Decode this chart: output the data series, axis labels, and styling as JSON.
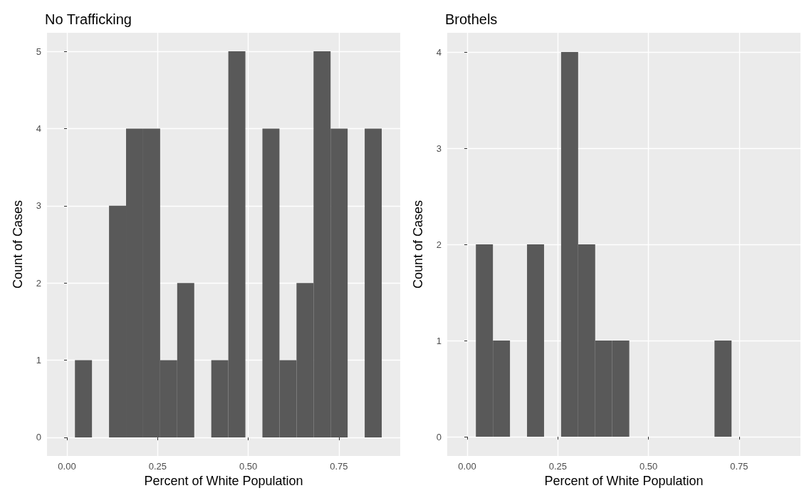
{
  "chart_data": [
    {
      "type": "histogram",
      "title": "No Trafficking",
      "xlabel": "Percent of White Population",
      "ylabel": "Count of Cases",
      "color": "#595959",
      "bins": [
        0.022,
        0.069,
        0.116,
        0.163,
        0.21,
        0.257,
        0.304,
        0.351,
        0.398,
        0.445,
        0.492,
        0.539,
        0.586,
        0.633,
        0.68,
        0.727,
        0.774,
        0.821,
        0.868
      ],
      "values": [
        1,
        0,
        3,
        4,
        4,
        1,
        2,
        0,
        1,
        5,
        0,
        4,
        1,
        2,
        5,
        4,
        0,
        4
      ],
      "xlim": [
        -0.055,
        0.919
      ],
      "xticks": [
        {
          "value": 0,
          "label": "0.00"
        },
        {
          "value": 0.25,
          "label": "0.25"
        },
        {
          "value": 0.5,
          "label": "0.50"
        },
        {
          "value": 0.75,
          "label": "0.75"
        }
      ],
      "ylim": [
        -0.24,
        5.24
      ],
      "yticks": [
        0,
        1,
        2,
        3,
        4,
        5
      ],
      "grid": true
    },
    {
      "type": "histogram",
      "title": "Brothels",
      "xlabel": "Percent of White Population",
      "ylabel": "Count of Cases",
      "color": "#595959",
      "bins": [
        0.024,
        0.071,
        0.118,
        0.165,
        0.212,
        0.259,
        0.306,
        0.353,
        0.4,
        0.447,
        0.494,
        0.541,
        0.588,
        0.635,
        0.682,
        0.729
      ],
      "values": [
        2,
        1,
        0,
        2,
        0,
        4,
        2,
        1,
        1,
        0,
        0,
        0,
        0,
        0,
        1
      ],
      "xlim": [
        -0.055,
        0.919
      ],
      "xticks": [
        {
          "value": 0,
          "label": "0.00"
        },
        {
          "value": 0.25,
          "label": "0.25"
        },
        {
          "value": 0.5,
          "label": "0.50"
        },
        {
          "value": 0.75,
          "label": "0.75"
        }
      ],
      "ylim": [
        -0.2,
        4.2
      ],
      "yticks": [
        0,
        1,
        2,
        3,
        4
      ],
      "grid": true
    }
  ]
}
